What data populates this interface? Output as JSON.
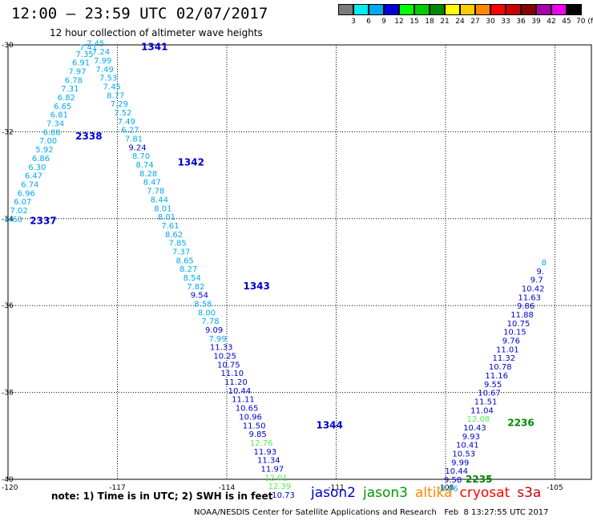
{
  "header": {
    "title": "12:00 – 23:59 UTC 02/07/2017",
    "subtitle": "12 hour collection of altimeter wave heights"
  },
  "colorbar": {
    "labels": [
      "3",
      "6",
      "9",
      "12",
      "15",
      "18",
      "21",
      "24",
      "27",
      "30",
      "33",
      "36",
      "39",
      "42",
      "45",
      "70 (ft)"
    ],
    "colors": [
      "#7a7a7a",
      "#00eeee",
      "#00aaee",
      "#0000dd",
      "#00ff00",
      "#00cc00",
      "#008800",
      "#ffff00",
      "#ffcc00",
      "#ff8800",
      "#ff0000",
      "#cc0000",
      "#880000",
      "#aa00aa",
      "#ee00ee",
      "#000000"
    ]
  },
  "footer": {
    "note": "note: 1) Time is in UTC; 2) SWH is in feet",
    "credit": "NOAA/NESDIS Center for Satellite Applications and Research   Feb  8 13:27:55 UTC 2017",
    "legend": [
      {
        "name": "jason2",
        "color": "#0000cc"
      },
      {
        "name": "jason3",
        "color": "#009900"
      },
      {
        "name": "altika",
        "color": "#ff8800"
      },
      {
        "name": "cryosat",
        "color": "#ff0000"
      },
      {
        "name": "s3a",
        "color": "#cc0000"
      }
    ]
  },
  "chart_data": {
    "type": "scatter",
    "title": "12:00 – 23:59 UTC 02/07/2017",
    "subtitle": "12 hour collection of altimeter wave heights",
    "xlim": [
      -120,
      -104
    ],
    "ylim": [
      -40,
      -30
    ],
    "x_ticks": [
      -120,
      -117,
      -114,
      -111,
      -108,
      -105
    ],
    "y_ticks": [
      -30,
      -32,
      -34,
      -36,
      -38,
      -40
    ],
    "x_tick_labels": [
      "-120",
      "-117",
      "-114",
      "-111",
      "-108",
      "-105"
    ],
    "y_tick_labels": [
      "-30",
      "-32",
      "-34",
      "-36",
      "-38",
      "-40"
    ],
    "grid": true,
    "colors": {
      "light": "#00aaee",
      "medium": "#0000cc",
      "green": "#55ee55",
      "pass": "#0000cc",
      "pass_green": "#008800"
    },
    "pass_labels": [
      {
        "text": "1341",
        "x": -116.35,
        "y": -30.05,
        "color": "pass"
      },
      {
        "text": "2338",
        "x": -118.15,
        "y": -32.1,
        "color": "pass"
      },
      {
        "text": "1342",
        "x": -115.35,
        "y": -32.7,
        "color": "pass"
      },
      {
        "text": "2337",
        "x": -119.4,
        "y": -34.05,
        "color": "pass"
      },
      {
        "text": "1343",
        "x": -113.55,
        "y": -35.55,
        "color": "pass"
      },
      {
        "text": "1344",
        "x": -111.55,
        "y": -38.75,
        "color": "pass"
      },
      {
        "text": "2236",
        "x": -106.3,
        "y": -38.7,
        "color": "pass_green"
      },
      {
        "text": "2235",
        "x": -107.45,
        "y": -40.0,
        "color": "pass_green"
      }
    ],
    "tracks": [
      {
        "name": "",
        "color": "light",
        "points": [
          {
            "x": -119.85,
            "y": -34.0,
            "v": "6.60"
          },
          {
            "x": -119.7,
            "y": -33.8,
            "v": "7.02"
          },
          {
            "x": -119.6,
            "y": -33.6,
            "v": "6.07"
          },
          {
            "x": -119.5,
            "y": -33.4,
            "v": "6.96"
          },
          {
            "x": -119.4,
            "y": -33.2,
            "v": "6.74"
          },
          {
            "x": -119.3,
            "y": -33.0,
            "v": "6.47"
          },
          {
            "x": -119.2,
            "y": -32.8,
            "v": "6.30"
          },
          {
            "x": -119.1,
            "y": -32.6,
            "v": "6.86"
          },
          {
            "x": -119.0,
            "y": -32.4,
            "v": "5.92"
          },
          {
            "x": -118.9,
            "y": -32.2,
            "v": "7.00"
          },
          {
            "x": -118.8,
            "y": -32.0,
            "v": "6.88"
          },
          {
            "x": -118.7,
            "y": -31.8,
            "v": "7.34"
          },
          {
            "x": -118.6,
            "y": -31.6,
            "v": "6.81"
          },
          {
            "x": -118.5,
            "y": -31.4,
            "v": "6.65"
          },
          {
            "x": -118.4,
            "y": -31.2,
            "v": "6.82"
          },
          {
            "x": -118.3,
            "y": -31.0,
            "v": "7.31"
          },
          {
            "x": -118.2,
            "y": -30.8,
            "v": "6.78"
          },
          {
            "x": -118.1,
            "y": -30.6,
            "v": "7.97"
          },
          {
            "x": -118.0,
            "y": -30.4,
            "v": "6.91"
          },
          {
            "x": -117.9,
            "y": -30.2,
            "v": "7.35"
          },
          {
            "x": -117.8,
            "y": -30.05,
            "v": "7.41"
          },
          {
            "x": -117.6,
            "y": -29.95,
            "v": "7.45"
          }
        ]
      },
      {
        "name": "",
        "color": "light",
        "points": [
          {
            "x": -117.45,
            "y": -30.15,
            "v": "7.24"
          },
          {
            "x": -117.4,
            "y": -30.35,
            "v": "7.99"
          },
          {
            "x": -117.35,
            "y": -30.55,
            "v": "7.49"
          },
          {
            "x": -117.25,
            "y": -30.75,
            "v": "7.53"
          },
          {
            "x": -117.15,
            "y": -30.95,
            "v": "7.45"
          },
          {
            "x": -117.05,
            "y": -31.15,
            "v": "8.77"
          },
          {
            "x": -116.95,
            "y": -31.35,
            "v": "7.29"
          },
          {
            "x": -116.85,
            "y": -31.55,
            "v": "7.52"
          },
          {
            "x": -116.75,
            "y": -31.75,
            "v": "7.49"
          },
          {
            "x": -116.65,
            "y": -31.95,
            "v": "6.27"
          },
          {
            "x": -116.55,
            "y": -32.15,
            "v": "7.81"
          },
          {
            "x": -116.45,
            "y": -32.35,
            "v": "9.24",
            "color": "medium"
          },
          {
            "x": -116.35,
            "y": -32.55,
            "v": "8.70"
          },
          {
            "x": -116.25,
            "y": -32.75,
            "v": "8.74"
          },
          {
            "x": -116.15,
            "y": -32.95,
            "v": "8.28"
          },
          {
            "x": -116.05,
            "y": -33.15,
            "v": "8.47"
          },
          {
            "x": -115.95,
            "y": -33.35,
            "v": "7.78"
          },
          {
            "x": -115.85,
            "y": -33.55,
            "v": "8.44"
          },
          {
            "x": -115.75,
            "y": -33.75,
            "v": "8.01"
          },
          {
            "x": -115.65,
            "y": -33.95,
            "v": "8.01"
          },
          {
            "x": -115.55,
            "y": -34.15,
            "v": "7.61"
          },
          {
            "x": -115.45,
            "y": -34.35,
            "v": "8.62"
          },
          {
            "x": -115.35,
            "y": -34.55,
            "v": "7.85"
          },
          {
            "x": -115.25,
            "y": -34.75,
            "v": "7.37"
          },
          {
            "x": -115.15,
            "y": -34.95,
            "v": "8.65"
          },
          {
            "x": -115.05,
            "y": -35.15,
            "v": "8.27"
          },
          {
            "x": -114.95,
            "y": -35.35,
            "v": "8.54"
          },
          {
            "x": -114.85,
            "y": -35.55,
            "v": "7.82"
          },
          {
            "x": -114.75,
            "y": -35.75,
            "v": "9.54",
            "color": "medium"
          },
          {
            "x": -114.65,
            "y": -35.95,
            "v": "8.58"
          },
          {
            "x": -114.55,
            "y": -36.15,
            "v": "8.00"
          },
          {
            "x": -114.45,
            "y": -36.35,
            "v": "7.78"
          },
          {
            "x": -114.35,
            "y": -36.55,
            "v": "9.09",
            "color": "medium"
          },
          {
            "x": -114.25,
            "y": -36.75,
            "v": "7.99"
          },
          {
            "x": -114.15,
            "y": -36.95,
            "v": "11.33",
            "color": "medium"
          },
          {
            "x": -114.05,
            "y": -37.15,
            "v": "10.25",
            "color": "medium"
          },
          {
            "x": -113.95,
            "y": -37.35,
            "v": "10.75",
            "color": "medium"
          },
          {
            "x": -113.85,
            "y": -37.55,
            "v": "11.10",
            "color": "medium"
          },
          {
            "x": -113.75,
            "y": -37.75,
            "v": "11.20",
            "color": "medium"
          },
          {
            "x": -113.65,
            "y": -37.95,
            "v": "10.44",
            "color": "medium"
          },
          {
            "x": -113.55,
            "y": -38.15,
            "v": "11.11",
            "color": "medium"
          },
          {
            "x": -113.45,
            "y": -38.35,
            "v": "10.65",
            "color": "medium"
          },
          {
            "x": -113.35,
            "y": -38.55,
            "v": "10.96",
            "color": "medium"
          },
          {
            "x": -113.25,
            "y": -38.75,
            "v": "11.50",
            "color": "medium"
          },
          {
            "x": -113.15,
            "y": -38.95,
            "v": "9.85",
            "color": "medium"
          },
          {
            "x": -113.05,
            "y": -39.15,
            "v": "12.76",
            "color": "green"
          },
          {
            "x": -112.95,
            "y": -39.35,
            "v": "11.93",
            "color": "medium"
          },
          {
            "x": -112.85,
            "y": -39.55,
            "v": "11.34",
            "color": "medium"
          },
          {
            "x": -112.75,
            "y": -39.75,
            "v": "11.97",
            "color": "medium"
          },
          {
            "x": -112.65,
            "y": -39.95,
            "v": "12.01",
            "color": "green"
          },
          {
            "x": -112.55,
            "y": -40.15,
            "v": "12.39",
            "color": "green"
          },
          {
            "x": -112.45,
            "y": -40.35,
            "v": "10.73",
            "color": "medium"
          }
        ]
      },
      {
        "name": "",
        "color": "medium",
        "points": [
          {
            "x": -107.9,
            "y": -40.2,
            "v": "8.56",
            "color": "light"
          },
          {
            "x": -107.8,
            "y": -40.0,
            "v": "9.58"
          },
          {
            "x": -107.7,
            "y": -39.8,
            "v": "10.44"
          },
          {
            "x": -107.6,
            "y": -39.6,
            "v": "9.99"
          },
          {
            "x": -107.5,
            "y": -39.4,
            "v": "10.53"
          },
          {
            "x": -107.4,
            "y": -39.2,
            "v": "10.41"
          },
          {
            "x": -107.3,
            "y": -39.0,
            "v": "9.93"
          },
          {
            "x": -107.2,
            "y": -38.8,
            "v": "10.43"
          },
          {
            "x": -107.1,
            "y": -38.6,
            "v": "12.08",
            "color": "green"
          },
          {
            "x": -107.0,
            "y": -38.4,
            "v": "11.04"
          },
          {
            "x": -106.9,
            "y": -38.2,
            "v": "11.51"
          },
          {
            "x": -106.8,
            "y": -38.0,
            "v": "10.67"
          },
          {
            "x": -106.7,
            "y": -37.8,
            "v": "9.55"
          },
          {
            "x": -106.6,
            "y": -37.6,
            "v": "11.16"
          },
          {
            "x": -106.5,
            "y": -37.4,
            "v": "10.78"
          },
          {
            "x": -106.4,
            "y": -37.2,
            "v": "11.32"
          },
          {
            "x": -106.3,
            "y": -37.0,
            "v": "11.01"
          },
          {
            "x": -106.2,
            "y": -36.8,
            "v": "9.76"
          },
          {
            "x": -106.1,
            "y": -36.6,
            "v": "10.15"
          },
          {
            "x": -106.0,
            "y": -36.4,
            "v": "10.75"
          },
          {
            "x": -105.9,
            "y": -36.2,
            "v": "11.88"
          },
          {
            "x": -105.8,
            "y": -36.0,
            "v": "9.86"
          },
          {
            "x": -105.7,
            "y": -35.8,
            "v": "11.63"
          },
          {
            "x": -105.6,
            "y": -35.6,
            "v": "10.42"
          },
          {
            "x": -105.5,
            "y": -35.4,
            "v": "9.7"
          },
          {
            "x": -105.4,
            "y": -35.2,
            "v": "9."
          },
          {
            "x": -105.3,
            "y": -35.0,
            "v": "8",
            "color": "light"
          }
        ]
      }
    ]
  }
}
